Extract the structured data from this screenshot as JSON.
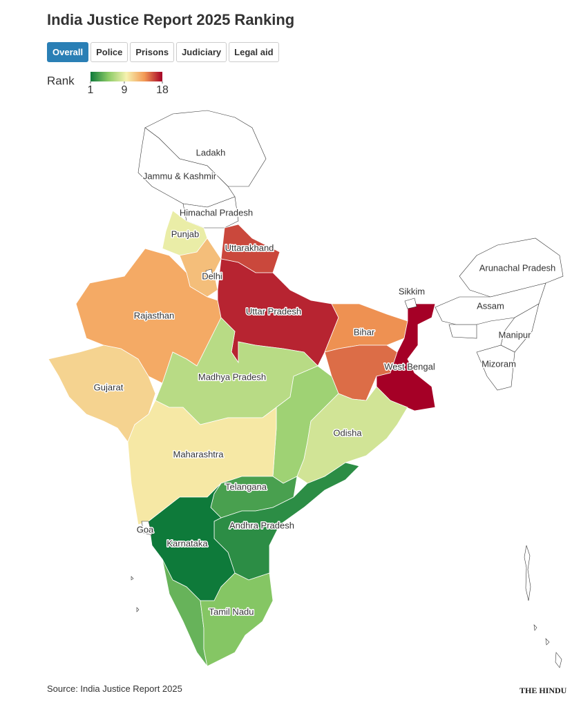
{
  "header": {
    "title": "India Justice Report 2025 Ranking",
    "tabs": [
      "Overall",
      "Police",
      "Prisons",
      "Judiciary",
      "Legal aid"
    ]
  },
  "chart_data": {
    "type": "choropleth",
    "legend_title": "Rank",
    "legend_ticks": [
      1,
      9,
      18
    ],
    "colors": [
      "#0e7a3a",
      "#8ccb67",
      "#f6f2b0",
      "#f39a55",
      "#a50026"
    ],
    "states": [
      {
        "label": "Ladakh",
        "rank": null
      },
      {
        "label": "Jammu & Kashmir",
        "rank": null
      },
      {
        "label": "Himachal Pradesh",
        "rank": null
      },
      {
        "label": "Punjab",
        "rank": 9
      },
      {
        "label": "Uttarakhand",
        "rank": 16
      },
      {
        "label": null,
        "rank": 12
      },
      {
        "label": "Delhi",
        "rank": null
      },
      {
        "label": "Rajasthan",
        "rank": 13
      },
      {
        "label": "Uttar Pradesh",
        "rank": 17
      },
      {
        "label": "Bihar",
        "rank": 14
      },
      {
        "label": null,
        "rank": 15
      },
      {
        "label": "West Bengal",
        "rank": 18
      },
      {
        "label": "Sikkim",
        "rank": null
      },
      {
        "label": "Arunachal Pradesh",
        "rank": null
      },
      {
        "label": "Assam",
        "rank": null
      },
      {
        "label": "Manipur",
        "rank": null
      },
      {
        "label": "Mizoram",
        "rank": null
      },
      {
        "label": "Gujarat",
        "rank": 11
      },
      {
        "label": "Madhya Pradesh",
        "rank": 7
      },
      {
        "label": null,
        "rank": 6
      },
      {
        "label": "Maharashtra",
        "rank": 10
      },
      {
        "label": "Odisha",
        "rank": 8
      },
      {
        "label": "Telangana",
        "rank": 3
      },
      {
        "label": "Andhra Pradesh",
        "rank": 2
      },
      {
        "label": "Karnataka",
        "rank": 1
      },
      {
        "label": "Goa",
        "rank": null
      },
      {
        "label": null,
        "rank": 4
      },
      {
        "label": "Tamil Nadu",
        "rank": 5
      }
    ]
  },
  "source": "Source: India Justice Report 2025",
  "logo": "THE HINDU"
}
